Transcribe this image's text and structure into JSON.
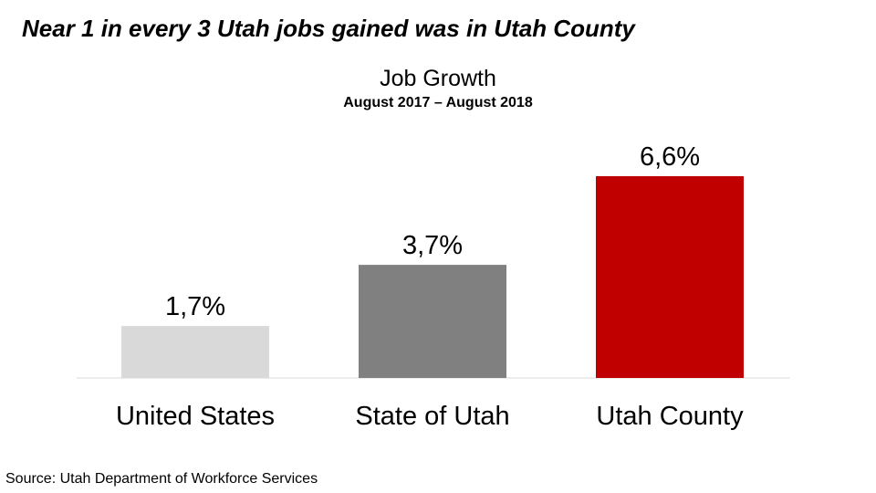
{
  "headline": "Near 1 in every 3 Utah jobs gained was in Utah County",
  "source": "Source:  Utah Department of Workforce Services",
  "chart_data": {
    "type": "bar",
    "title": "Job Growth",
    "subtitle": "August 2017 – August 2018",
    "categories": [
      "United States",
      "State of Utah",
      "Utah County"
    ],
    "values": [
      1.7,
      3.7,
      6.6
    ],
    "data_labels": [
      "1,7%",
      "3,7%",
      "6,6%"
    ],
    "colors": [
      "#d9d9d9",
      "#808080",
      "#c00000"
    ],
    "xlabel": "",
    "ylabel": "",
    "ylim": [
      0,
      6.6
    ],
    "grid": false,
    "legend": "none"
  }
}
